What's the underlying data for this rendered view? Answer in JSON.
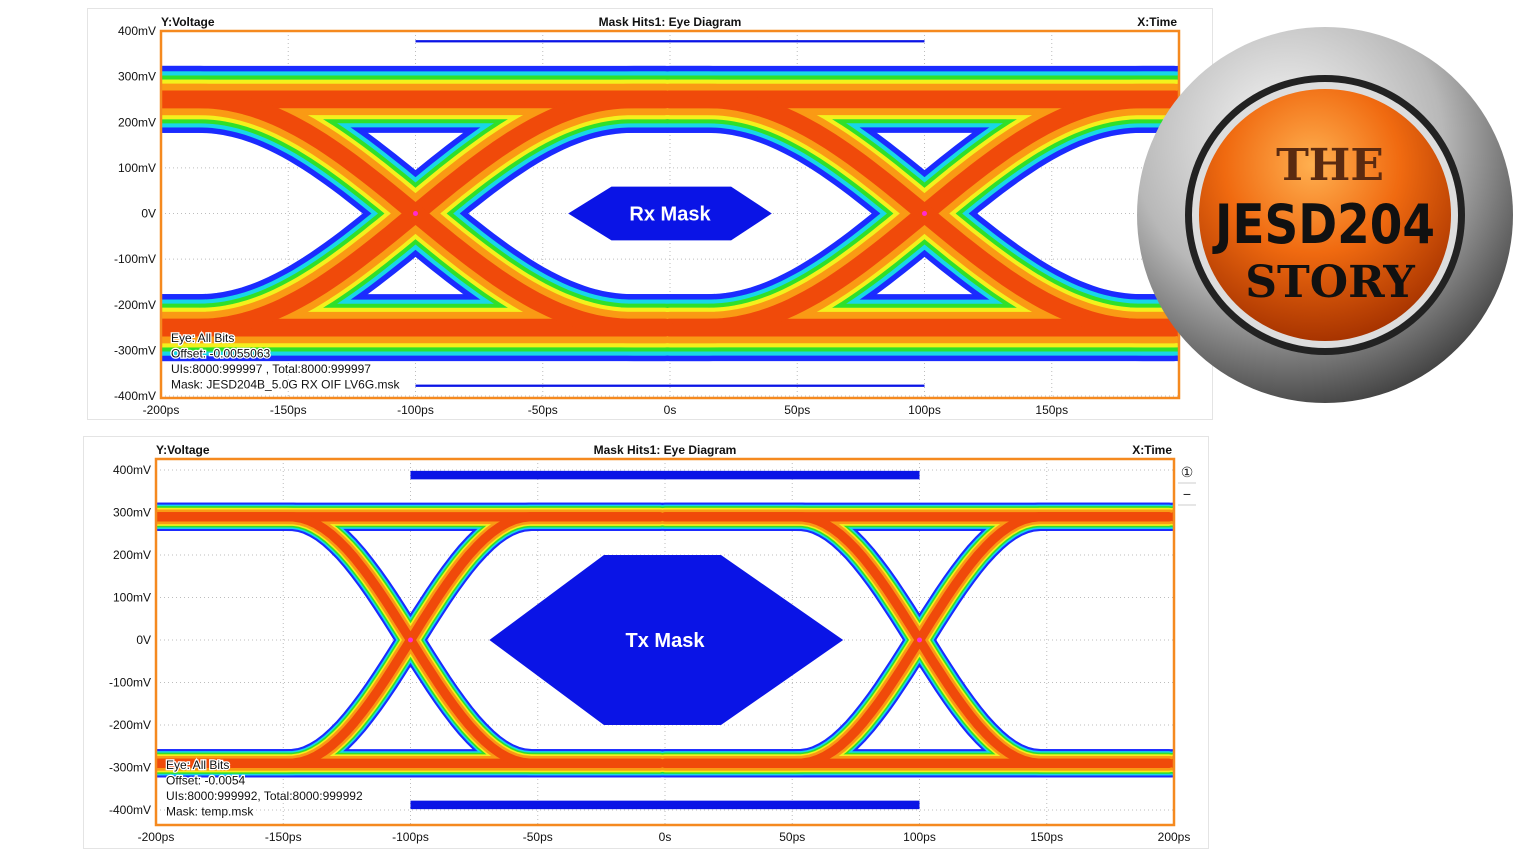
{
  "colors": {
    "frame": "#f5891f",
    "mask": "#0a14e6",
    "grid": "#bdbdbd",
    "density": [
      "#1b2bff",
      "#18d6e8",
      "#2fe02a",
      "#f4f01c",
      "#fa9a14",
      "#f04a0a"
    ]
  },
  "logo": {
    "line1": "THE",
    "line2": "JESD204",
    "line3": "STORY"
  },
  "chart_data": [
    {
      "type": "eye",
      "title": "Mask Hits1: Eye Diagram",
      "ylabel": "Y:Voltage",
      "xlabel": "X:Time",
      "yticks": [
        "400mV",
        "300mV",
        "200mV",
        "100mV",
        "0V",
        "-100mV",
        "-200mV",
        "-300mV",
        "-400mV"
      ],
      "xticks": [
        "-200ps",
        "-150ps",
        "-100ps",
        "-50ps",
        "0s",
        "50ps",
        "100ps",
        "150ps"
      ],
      "xlim": [
        -200,
        200
      ],
      "ylim": [
        -400,
        400
      ],
      "x_unit": "ps",
      "y_unit": "mV",
      "grid": true,
      "eye": {
        "ui_ps": 200,
        "crossings_ps": [
          -100,
          100
        ],
        "amplitude_mV": 250,
        "spread_mV": 60,
        "transition_ps": 170
      },
      "mask_label": "Rx Mask",
      "mask_polygon": [
        [
          -40,
          0
        ],
        [
          -23,
          59
        ],
        [
          24,
          59
        ],
        [
          40,
          0
        ],
        [
          24,
          -59
        ],
        [
          -23,
          -59
        ]
      ],
      "mask_bars": [
        {
          "x": [
            -100,
            100
          ],
          "y": [
            375,
            380
          ]
        },
        {
          "x": [
            -100,
            100
          ],
          "y": [
            -380,
            -375
          ]
        }
      ],
      "annotations": [
        "Eye: All Bits",
        "Offset: -0.0055063",
        "UIs:8000:999997 , Total:8000:999997",
        "Mask: JESD204B_5.0G RX OIF LV6G.msk"
      ]
    },
    {
      "type": "eye",
      "title": "Mask Hits1: Eye Diagram",
      "ylabel": "Y:Voltage",
      "xlabel": "X:Time",
      "yticks": [
        "400mV",
        "300mV",
        "200mV",
        "100mV",
        "0V",
        "-100mV",
        "-200mV",
        "-300mV",
        "-400mV"
      ],
      "xticks": [
        "-200ps",
        "-150ps",
        "-100ps",
        "-50ps",
        "0s",
        "50ps",
        "100ps",
        "150ps",
        "200ps"
      ],
      "xlim": [
        -200,
        200
      ],
      "ylim": [
        -400,
        400
      ],
      "x_unit": "ps",
      "y_unit": "mV",
      "grid": true,
      "eye": {
        "ui_ps": 200,
        "crossings_ps": [
          -100,
          100
        ],
        "amplitude_mV": 290,
        "spread_mV": 25,
        "transition_ps": 95
      },
      "mask_label": "Tx Mask",
      "mask_polygon": [
        [
          -69,
          0
        ],
        [
          -24,
          200
        ],
        [
          22,
          200
        ],
        [
          70,
          0
        ],
        [
          22,
          -200
        ],
        [
          -24,
          -200
        ]
      ],
      "mask_bars": [
        {
          "x": [
            -100,
            100
          ],
          "y": [
            378,
            398
          ]
        },
        {
          "x": [
            -100,
            100
          ],
          "y": [
            -398,
            -378
          ]
        }
      ],
      "annotations": [
        "Eye: All Bits",
        "Offset: -0.0054",
        "UIs:8000:999992, Total:8000:999992",
        "Mask: temp.msk"
      ],
      "side_buttons": [
        "①",
        "−"
      ]
    }
  ]
}
